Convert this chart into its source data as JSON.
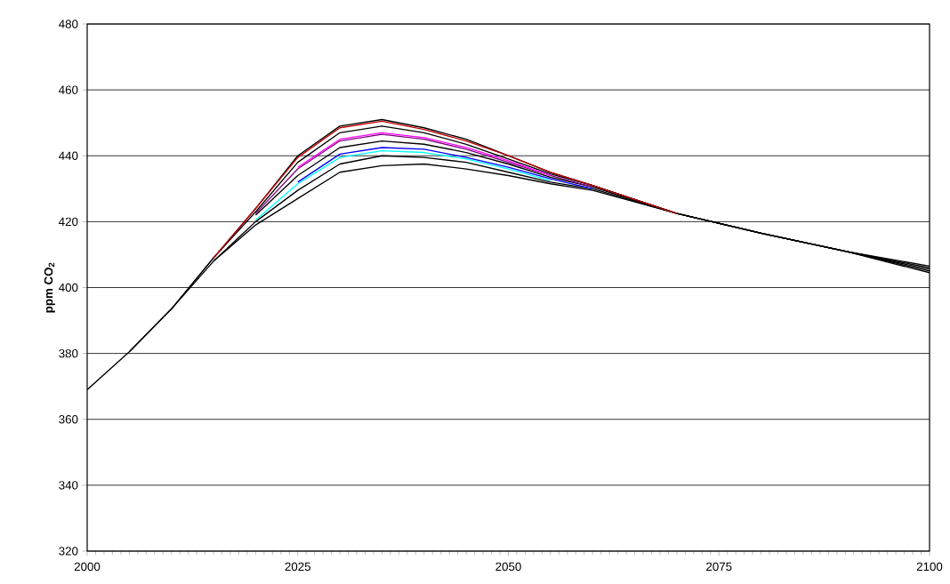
{
  "chart_data": {
    "type": "line",
    "ylabel": "ppm CO$_{2}$",
    "x": [
      2000,
      2005,
      2010,
      2015,
      2020,
      2025,
      2030,
      2035,
      2040,
      2045,
      2050,
      2055,
      2060,
      2070,
      2080,
      2090,
      2100
    ],
    "xlim": [
      2000,
      2100
    ],
    "xticks": [
      2000,
      2025,
      2050,
      2075,
      2100
    ],
    "ylim": [
      320,
      480
    ],
    "yticks": [
      320,
      340,
      360,
      380,
      400,
      420,
      440,
      460,
      480
    ],
    "grid": "y",
    "marker": "none",
    "line_style": "solid",
    "series": [
      {
        "color": "#000000",
        "values": [
          369,
          380.5,
          393.5,
          408,
          419,
          427,
          435,
          437,
          437.5,
          436,
          434,
          431.5,
          429.5,
          422.5,
          416.5,
          411,
          404.5
        ]
      },
      {
        "color": "#000000",
        "values": [
          null,
          null,
          null,
          408,
          420,
          429.5,
          437.5,
          440,
          439.5,
          438,
          435,
          432,
          430,
          422.5,
          416.5,
          411,
          405
        ]
      },
      {
        "color": "#000000",
        "values": [
          null,
          null,
          null,
          null,
          422,
          434,
          442.5,
          444.5,
          443.5,
          441,
          437.5,
          433.5,
          430.5,
          422.5,
          416.5,
          411,
          405.5
        ]
      },
      {
        "color": "#000000",
        "values": [
          null,
          null,
          393.5,
          409,
          423,
          438,
          447,
          449,
          447,
          443.5,
          439,
          434.5,
          431,
          422.5,
          416.5,
          411,
          406
        ]
      },
      {
        "color": "#000000",
        "values": [
          null,
          380.5,
          393.5,
          409,
          424,
          440,
          449,
          451,
          448.5,
          445,
          440,
          435,
          431,
          422.5,
          416.5,
          411,
          406.5
        ]
      },
      {
        "color": "#00ffff",
        "values": [
          null,
          null,
          null,
          null,
          420.5,
          431.5,
          439.5,
          441.5,
          441,
          439,
          436,
          432.5,
          null,
          null,
          null,
          null,
          null
        ]
      },
      {
        "color": "#0000ff",
        "values": [
          null,
          null,
          null,
          null,
          null,
          432,
          440.5,
          442.5,
          442,
          439.5,
          436.5,
          433,
          430,
          null,
          null,
          null,
          null
        ]
      },
      {
        "color": "#800080",
        "values": [
          null,
          null,
          null,
          null,
          422.5,
          436,
          444.5,
          446.5,
          445,
          442,
          438,
          434,
          430.5,
          null,
          null,
          null,
          null
        ]
      },
      {
        "color": "#ff00ff",
        "values": [
          null,
          null,
          null,
          null,
          null,
          436.5,
          445,
          447,
          445.5,
          442.5,
          438.5,
          434,
          null,
          null,
          null,
          null,
          null
        ]
      },
      {
        "color": "#c00000",
        "values": [
          null,
          null,
          null,
          409,
          424,
          439.5,
          448.5,
          450.5,
          448,
          444.5,
          440,
          435,
          431,
          422.5,
          null,
          null,
          null
        ]
      }
    ]
  }
}
